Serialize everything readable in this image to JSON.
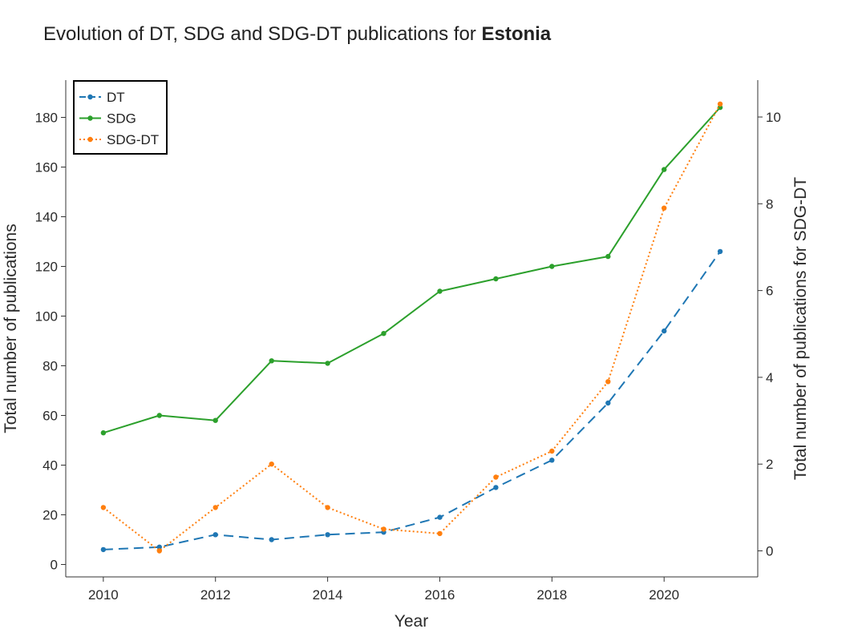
{
  "chart_data": {
    "type": "line",
    "title_prefix": "Evolution of DT, SDG and SDG-DT publications for ",
    "title_country": "Estonia",
    "xlabel": "Year",
    "ylabel_left": "Total number of publications",
    "ylabel_right": "Total number of publications for SDG-DT",
    "x": [
      2010,
      2011,
      2012,
      2013,
      2014,
      2015,
      2016,
      2017,
      2018,
      2019,
      2020,
      2021
    ],
    "xlim": [
      2009.33,
      2021.67
    ],
    "ylim_left": [
      -5,
      195
    ],
    "ylim_right": [
      -0.6,
      10.85
    ],
    "x_ticks": [
      "2010",
      "2012",
      "2014",
      "2016",
      "2018",
      "2020"
    ],
    "y_ticks_left": [
      "0",
      "20",
      "40",
      "60",
      "80",
      "100",
      "120",
      "140",
      "160",
      "180"
    ],
    "y_ticks_right": [
      "0",
      "2",
      "4",
      "6",
      "8",
      "10"
    ],
    "legend_position": "top-left",
    "series": [
      {
        "name": "DT",
        "axis": "left",
        "style": "dashed",
        "color": "#1f77b4",
        "values": [
          6,
          7,
          12,
          10,
          12,
          13,
          19,
          31,
          42,
          65,
          94,
          126
        ]
      },
      {
        "name": "SDG",
        "axis": "left",
        "style": "solid",
        "color": "#2ca02c",
        "values": [
          53,
          60,
          58,
          82,
          81,
          93,
          110,
          115,
          120,
          124,
          159,
          184
        ]
      },
      {
        "name": "SDG-DT",
        "axis": "right",
        "style": "dotted",
        "color": "#ff7f0e",
        "values": [
          1,
          0,
          1,
          2,
          1,
          0.5,
          0.4,
          1.7,
          2.3,
          3.9,
          7.9,
          10.3
        ]
      }
    ]
  }
}
